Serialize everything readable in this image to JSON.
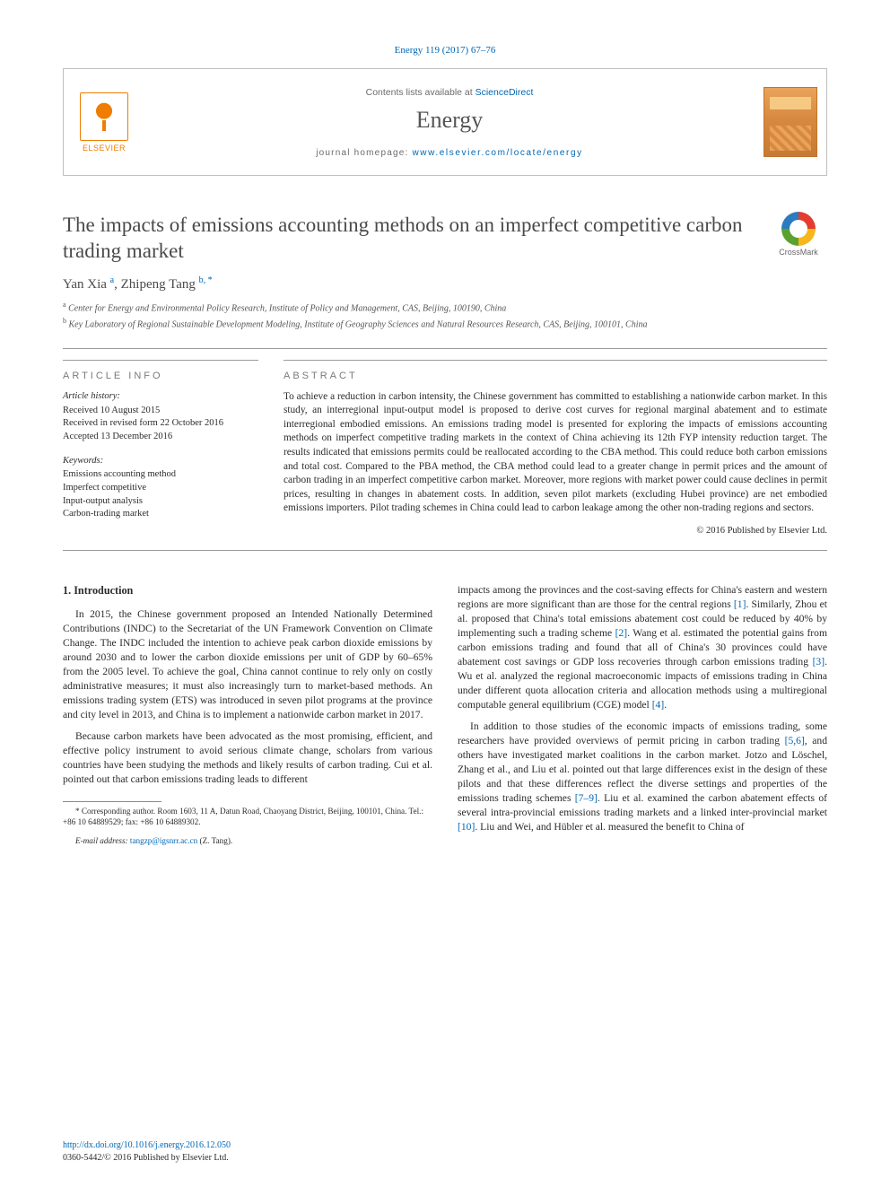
{
  "citation": "Energy 119 (2017) 67–76",
  "header": {
    "publisher": "ELSEVIER",
    "contents_prefix": "Contents lists available at ",
    "contents_link": "ScienceDirect",
    "journal": "Energy",
    "homepage_prefix": "journal homepage: ",
    "homepage_url": "www.elsevier.com/locate/energy"
  },
  "crossmark": "CrossMark",
  "title": "The impacts of emissions accounting methods on an imperfect competitive carbon trading market",
  "authors_html": "Yan Xia <sup>a</sup>, Zhipeng Tang <sup>b, *</sup>",
  "authors": {
    "a1_name": "Yan Xia",
    "a1_sup": "a",
    "a2_name": "Zhipeng Tang",
    "a2_sup": "b, *"
  },
  "affiliations": {
    "a": "Center for Energy and Environmental Policy Research, Institute of Policy and Management, CAS, Beijing, 100190, China",
    "b": "Key Laboratory of Regional Sustainable Development Modeling, Institute of Geography Sciences and Natural Resources Research, CAS, Beijing, 100101, China"
  },
  "info": {
    "head": "ARTICLE INFO",
    "history_head": "Article history:",
    "received": "Received 10 August 2015",
    "revised": "Received in revised form 22 October 2016",
    "accepted": "Accepted 13 December 2016",
    "keywords_head": "Keywords:",
    "kw1": "Emissions accounting method",
    "kw2": "Imperfect competitive",
    "kw3": "Input-output analysis",
    "kw4": "Carbon-trading market"
  },
  "abstract": {
    "head": "ABSTRACT",
    "text": "To achieve a reduction in carbon intensity, the Chinese government has committed to establishing a nationwide carbon market. In this study, an interregional input-output model is proposed to derive cost curves for regional marginal abatement and to estimate interregional embodied emissions. An emissions trading model is presented for exploring the impacts of emissions accounting methods on imperfect competitive trading markets in the context of China achieving its 12th FYP intensity reduction target. The results indicated that emissions permits could be reallocated according to the CBA method. This could reduce both carbon emissions and total cost. Compared to the PBA method, the CBA method could lead to a greater change in permit prices and the amount of carbon trading in an imperfect competitive carbon market. Moreover, more regions with market power could cause declines in permit prices, resulting in changes in abatement costs. In addition, seven pilot markets (excluding Hubei province) are net embodied emissions importers. Pilot trading schemes in China could lead to carbon leakage among the other non-trading regions and sectors.",
    "copyright": "© 2016 Published by Elsevier Ltd."
  },
  "section1": {
    "heading": "1. Introduction",
    "p1": "In 2015, the Chinese government proposed an Intended Nationally Determined Contributions (INDC) to the Secretariat of the UN Framework Convention on Climate Change. The INDC included the intention to achieve peak carbon dioxide emissions by around 2030 and to lower the carbon dioxide emissions per unit of GDP by 60–65% from the 2005 level. To achieve the goal, China cannot continue to rely only on costly administrative measures; it must also increasingly turn to market-based methods. An emissions trading system (ETS) was introduced in seven pilot programs at the province and city level in 2013, and China is to implement a nationwide carbon market in 2017.",
    "p2": "Because carbon markets have been advocated as the most promising, efficient, and effective policy instrument to avoid serious climate change, scholars from various countries have been studying the methods and likely results of carbon trading. Cui et al. pointed out that carbon emissions trading leads to different",
    "p3a": "impacts among the provinces and the cost-saving effects for China's eastern and western regions are more significant than are those for the central regions ",
    "r1": "[1]",
    "p3b": ". Similarly, Zhou et al. proposed that China's total emissions abatement cost could be reduced by 40% by implementing such a trading scheme ",
    "r2": "[2]",
    "p3c": ". Wang et al. estimated the potential gains from carbon emissions trading and found that all of China's 30 provinces could have abatement cost savings or GDP loss recoveries through carbon emissions trading ",
    "r3": "[3]",
    "p3d": ". Wu et al. analyzed the regional macroeconomic impacts of emissions trading in China under different quota allocation criteria and allocation methods using a multiregional computable general equilibrium (CGE) model ",
    "r4": "[4]",
    "p3e": ".",
    "p4a": "In addition to those studies of the economic impacts of emissions trading, some researchers have provided overviews of permit pricing in carbon trading ",
    "r56": "[5,6]",
    "p4b": ", and others have investigated market coalitions in the carbon market. Jotzo and Löschel, Zhang et al., and Liu et al. pointed out that large differences exist in the design of these pilots and that these differences reflect the diverse settings and properties of the emissions trading schemes ",
    "r79": "[7–9]",
    "p4c": ". Liu et al. examined the carbon abatement effects of several intra-provincial emissions trading markets and a linked inter-provincial market ",
    "r10": "[10]",
    "p4d": ". Liu and Wei, and Hübler et al. measured the benefit to China of"
  },
  "footnote": {
    "corr": "* Corresponding author. Room 1603, 11 A, Datun Road, Chaoyang District, Beijing, 100101, China. Tel.: +86 10 64889529; fax: +86 10 64889302.",
    "email_label": "E-mail address:",
    "email": "tangzp@igsnrr.ac.cn",
    "email_tail": "(Z. Tang)."
  },
  "footer": {
    "doi": "http://dx.doi.org/10.1016/j.energy.2016.12.050",
    "issn": "0360-5442/© 2016 Published by Elsevier Ltd."
  },
  "colors": {
    "link": "#0066b3",
    "publisher": "#ef7d00",
    "text": "#2b2b2b",
    "muted": "#6b6b6b",
    "rule": "#9a9a9a"
  }
}
